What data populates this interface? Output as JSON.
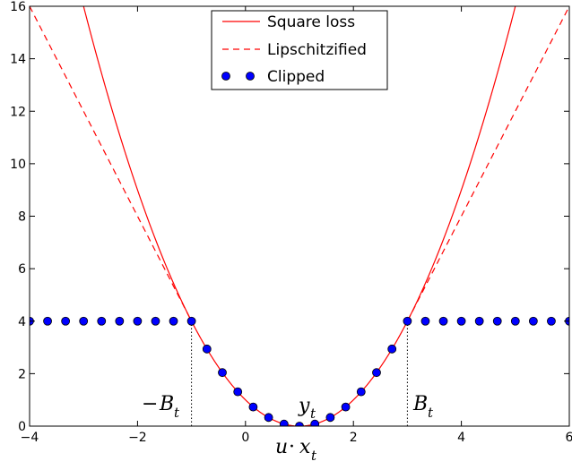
{
  "chart_data": {
    "type": "line",
    "xlim": [
      -4,
      6
    ],
    "ylim": [
      0,
      16
    ],
    "xticks": [
      -4,
      -2,
      0,
      2,
      4,
      6
    ],
    "yticks": [
      0,
      2,
      4,
      6,
      8,
      10,
      12,
      14,
      16
    ],
    "xtick_labels": [
      "−4",
      "−2",
      "0",
      "2",
      "4",
      "6"
    ],
    "ytick_labels": [
      "0",
      "2",
      "4",
      "6",
      "8",
      "10",
      "12",
      "14",
      "16"
    ],
    "xlabel": {
      "main": "u",
      "op": "·",
      "var": "x",
      "sub": "t"
    },
    "y_t": 1,
    "B_t_bound": 2,
    "annotations": {
      "neg_b": {
        "sign": "−",
        "var": "B",
        "sub": "t"
      },
      "pos_b": {
        "var": "B",
        "sub": "t"
      },
      "yt": {
        "var": "y",
        "sub": "t"
      }
    },
    "grid": false,
    "legend_position": "top-center",
    "colors": {
      "curve": "#ff0000",
      "marker_fill": "#0000ff",
      "marker_edge": "#000000"
    },
    "series": [
      {
        "name": "Square loss",
        "style": "solid",
        "function": "(x - 1)^2"
      },
      {
        "name": "Lipschitzified",
        "style": "dashed",
        "function": "(x-1)^2 for |x-1|<=2, else 4|x-1|-4"
      },
      {
        "name": "Clipped",
        "style": "markers",
        "function": "min((x-1)^2, 4)",
        "x": [
          -4.0,
          -3.6667,
          -3.3333,
          -3.0,
          -2.6667,
          -2.3333,
          -2.0,
          -1.6667,
          -1.3333,
          -1.0,
          -0.7143,
          -0.4286,
          -0.1429,
          0.1429,
          0.4286,
          0.7143,
          1.0,
          1.2857,
          1.5714,
          1.8571,
          2.1429,
          2.4286,
          2.7143,
          3.0,
          3.3333,
          3.6667,
          4.0,
          4.3333,
          4.6667,
          5.0,
          5.3333,
          5.6667,
          6.0
        ],
        "y": [
          4,
          4,
          4,
          4,
          4,
          4,
          4,
          4,
          4,
          4,
          2.94,
          2.04,
          1.31,
          0.73,
          0.33,
          0.08,
          0.0,
          0.08,
          0.33,
          0.73,
          1.31,
          2.04,
          2.94,
          4,
          4,
          4,
          4,
          4,
          4,
          4,
          4,
          4,
          4
        ]
      }
    ]
  }
}
